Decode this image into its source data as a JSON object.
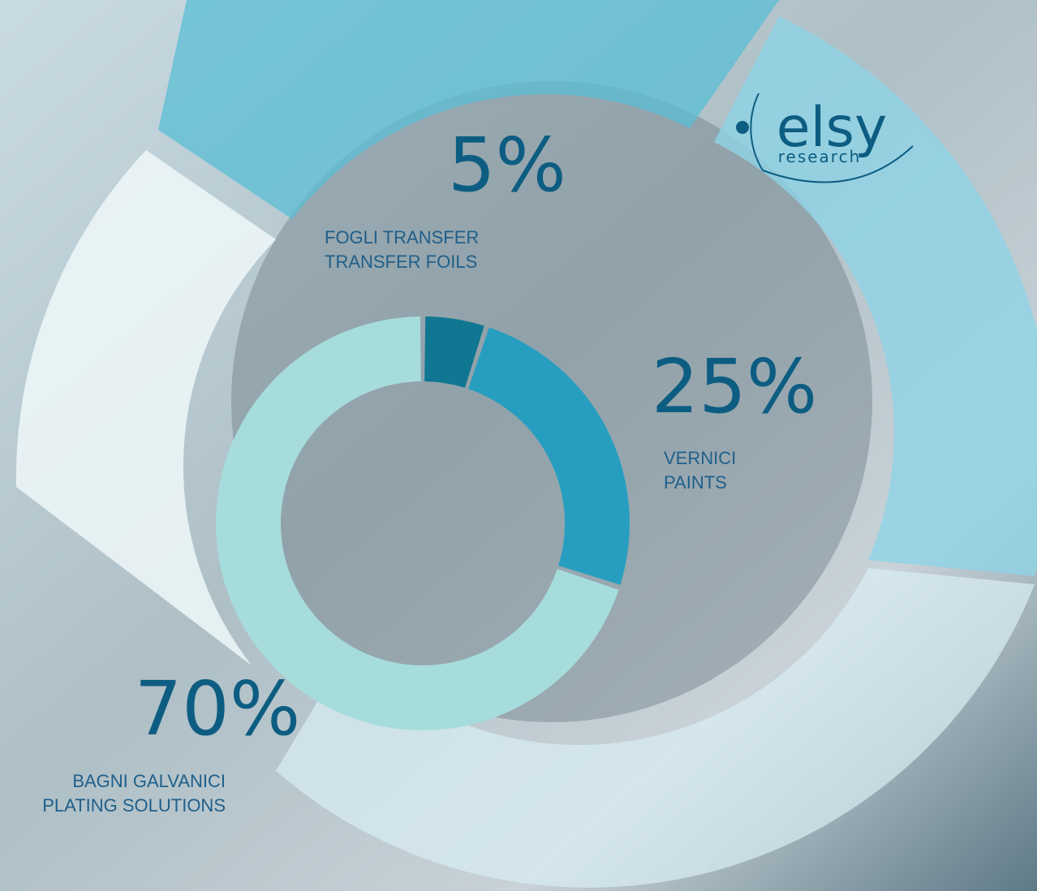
{
  "logo": {
    "name": "elsy",
    "tagline": "research"
  },
  "chart_data": {
    "type": "donut",
    "categories": [
      "FOGLI TRANSFER",
      "VERNICI",
      "BAGNI GALVANICI"
    ],
    "translations": [
      "TRANSFER FOILS",
      "PAINTS",
      "PLATING SOLUTIONS"
    ],
    "values": [
      5,
      25,
      70
    ],
    "value_labels": [
      "5%",
      "25%",
      "70%"
    ],
    "colors": [
      "#0f7791",
      "#279ebf",
      "#a6dcdc"
    ]
  }
}
